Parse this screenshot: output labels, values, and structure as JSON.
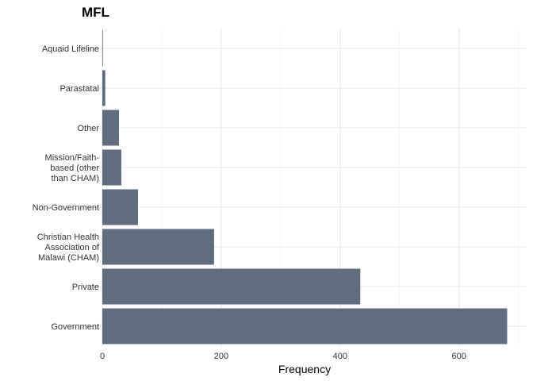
{
  "chart_data": {
    "type": "bar",
    "orientation": "horizontal",
    "title": "MFL",
    "xlabel": "Frequency",
    "ylabel": "",
    "categories": [
      "Government",
      "Private",
      "Christian Health Association of Malawi (CHAM)",
      "Non-Government",
      "Mission/Faith-based (other than CHAM)",
      "Other",
      "Parastatal",
      "Aquaid Lifeline"
    ],
    "category_labels": [
      [
        "Government"
      ],
      [
        "Private"
      ],
      [
        "Christian Health",
        "Association of",
        "Malawi (CHAM)"
      ],
      [
        "Non-Government"
      ],
      [
        "Mission/Faith-",
        "based (other",
        "than CHAM)"
      ],
      [
        "Other"
      ],
      [
        "Parastatal"
      ],
      [
        "Aquaid Lifeline"
      ]
    ],
    "values": [
      681,
      434,
      188,
      60,
      32,
      28,
      5,
      1
    ],
    "xlim": [
      0,
      700
    ],
    "x_ticks": [
      0,
      200,
      400,
      600
    ],
    "x_tick_labels": [
      "0",
      "200",
      "400",
      "600"
    ],
    "grid": true,
    "legend": "none",
    "bar_color": "#5f6e7e"
  }
}
